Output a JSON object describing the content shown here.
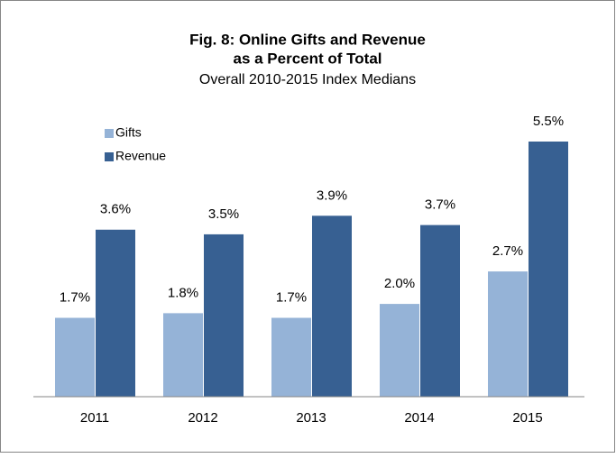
{
  "chart_data": {
    "type": "bar",
    "title": "Fig. 8: Online Gifts and Revenue",
    "title_line2": "as a Percent of Total",
    "subtitle": "Overall 2010-2015 Index Medians",
    "categories": [
      "2011",
      "2012",
      "2013",
      "2014",
      "2015"
    ],
    "series": [
      {
        "name": "Gifts",
        "color": "#95b3d7",
        "values": [
          1.7,
          1.8,
          1.7,
          2.0,
          2.7
        ],
        "value_labels": [
          "1.7%",
          "1.8%",
          "1.7%",
          "2.0%",
          "2.7%"
        ]
      },
      {
        "name": "Revenue",
        "color": "#376092",
        "values": [
          3.6,
          3.5,
          3.9,
          3.7,
          5.5
        ],
        "value_labels": [
          "3.6%",
          "3.5%",
          "3.9%",
          "3.7%",
          "5.5%"
        ]
      }
    ],
    "legend": "top-left"
  }
}
